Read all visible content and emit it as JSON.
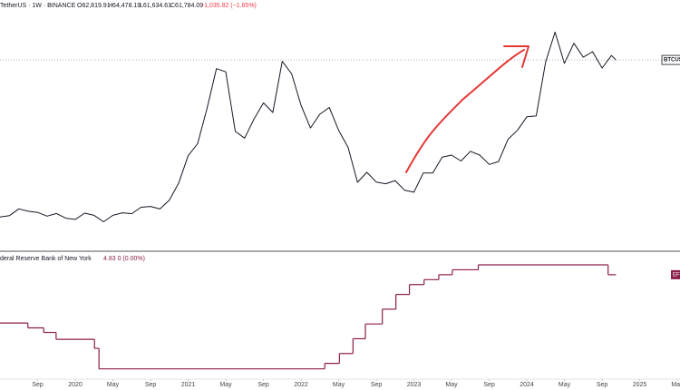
{
  "header": {
    "symbol": "TetherUS · 1W · BINANCE",
    "open": "O62,819.91",
    "high": "H64,478.19",
    "low": "L61,634.61",
    "close": "C61,784.09",
    "change": "−1,035.82 (−1.65%)"
  },
  "chart_data": [
    {
      "type": "line",
      "price_label": "BTCUS",
      "color": "#131722",
      "x": [
        2019.333,
        2019.417,
        2019.5,
        2019.583,
        2019.667,
        2019.75,
        2019.833,
        2019.917,
        2020.0,
        2020.083,
        2020.167,
        2020.25,
        2020.333,
        2020.417,
        2020.5,
        2020.583,
        2020.667,
        2020.75,
        2020.833,
        2020.917,
        2021.0,
        2021.083,
        2021.167,
        2021.25,
        2021.333,
        2021.417,
        2021.5,
        2021.583,
        2021.667,
        2021.75,
        2021.833,
        2021.917,
        2022.0,
        2022.083,
        2022.167,
        2022.25,
        2022.333,
        2022.417,
        2022.5,
        2022.583,
        2022.667,
        2022.75,
        2022.833,
        2022.917,
        2023.0,
        2023.083,
        2023.167,
        2023.25,
        2023.333,
        2023.417,
        2023.5,
        2023.583,
        2023.667,
        2023.75,
        2023.833,
        2023.917,
        2024.0,
        2024.083,
        2024.167,
        2024.25,
        2024.333,
        2024.417,
        2024.5,
        2024.583,
        2024.667,
        2024.75,
        2024.79
      ],
      "values": [
        8000,
        8500,
        10800,
        10000,
        9600,
        8300,
        9200,
        7600,
        7200,
        9350,
        8600,
        6400,
        8600,
        9450,
        9140,
        11350,
        11650,
        10780,
        13800,
        19700,
        29000,
        33100,
        45100,
        58800,
        57700,
        37300,
        35000,
        41500,
        47100,
        43800,
        61300,
        57000,
        46300,
        38500,
        43200,
        45500,
        37700,
        31800,
        19900,
        23300,
        20000,
        19400,
        20500,
        17200,
        16500,
        23100,
        23100,
        28500,
        29200,
        27200,
        30500,
        29200,
        26000,
        27000,
        34600,
        37700,
        42300,
        42600,
        61100,
        71300,
        60600,
        67500,
        62700,
        64600,
        59000,
        63300,
        61784.09
      ],
      "xlim": [
        2019.333,
        2025.357
      ],
      "ylim": [
        -3700,
        82300
      ],
      "xticks": [
        {
          "value": 2019.667,
          "label": "Sep"
        },
        2020,
        {
          "value": 2020.333,
          "label": "May"
        },
        {
          "value": 2020.667,
          "label": "Sep"
        },
        2021,
        {
          "value": 2021.333,
          "label": "May"
        },
        {
          "value": 2021.667,
          "label": "Sep"
        },
        2022,
        {
          "value": 2022.333,
          "label": "May"
        },
        {
          "value": 2022.667,
          "label": "Sep"
        },
        2023,
        {
          "value": 2023.333,
          "label": "May"
        },
        {
          "value": 2023.667,
          "label": "Sep"
        },
        2024,
        {
          "value": 2024.333,
          "label": "May"
        },
        {
          "value": 2024.667,
          "label": "Sep"
        },
        2025,
        {
          "value": 2025.333,
          "label": "May"
        }
      ]
    },
    {
      "type": "step",
      "title": "deral Reserve Bank of New York",
      "value_label": "4.83 0 (0.00%)",
      "tag": "EF",
      "color": "#8b1e4a",
      "x": [
        2019.333,
        2019.58,
        2019.72,
        2019.83,
        2020.17,
        2020.21,
        2022.21,
        2022.34,
        2022.46,
        2022.57,
        2022.72,
        2022.84,
        2022.96,
        2023.09,
        2023.22,
        2023.34,
        2023.57,
        2024.72,
        2024.79
      ],
      "values": [
        2.38,
        2.13,
        1.9,
        1.55,
        1.09,
        0.05,
        0.33,
        0.83,
        1.58,
        2.33,
        3.08,
        3.83,
        4.33,
        4.58,
        4.83,
        5.08,
        5.33,
        4.83,
        4.83
      ],
      "xlim": [
        2019.333,
        2025.357
      ],
      "ylim": [
        -0.47,
        5.93
      ]
    }
  ]
}
